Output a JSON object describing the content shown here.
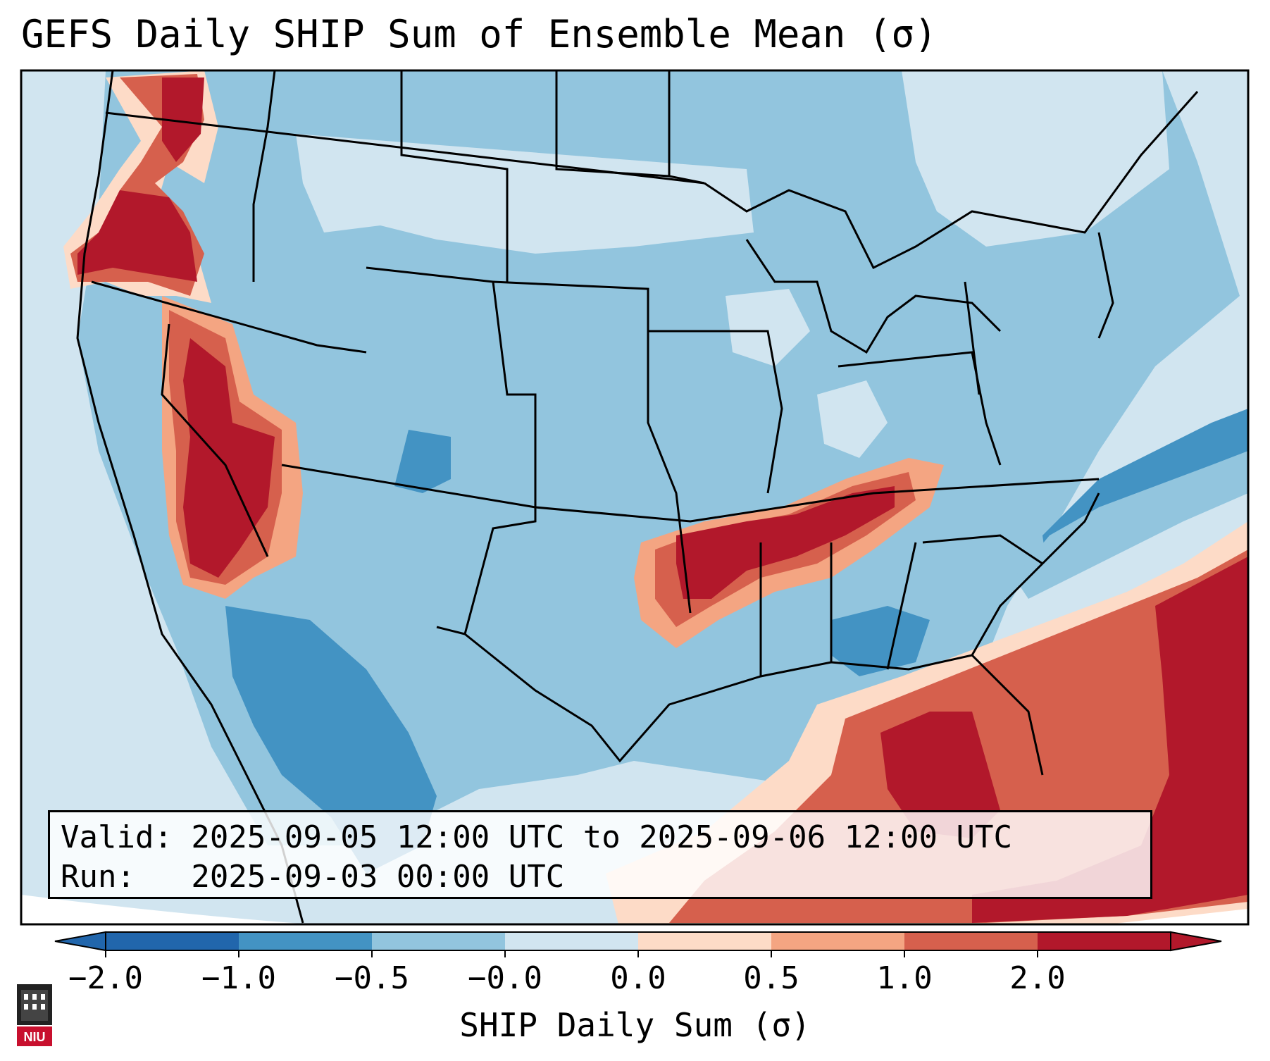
{
  "title": "GEFS Daily SHIP Sum of Ensemble Mean (σ)",
  "info": {
    "valid_line": "Valid: 2025-09-05 12:00 UTC to 2025-09-06 12:00 UTC",
    "run_line": "Run:   2025-09-03 00:00 UTC"
  },
  "colorbar": {
    "label": "SHIP Daily Sum (σ)",
    "ticks": [
      "−2.0",
      "−1.0",
      "−0.5",
      "−0.0",
      "0.0",
      "0.5",
      "1.0",
      "2.0"
    ],
    "colors": [
      "#2166ac",
      "#4393c3",
      "#92c5de",
      "#d1e5f0",
      "#fddbc7",
      "#f4a582",
      "#d6604d",
      "#b2182b"
    ],
    "extend": "both"
  },
  "map": {
    "ocean_background": "#d1e5f0",
    "regions": [
      {
        "label": "high",
        "color": "#b2182b",
        "location": "Pacific Northwest"
      },
      {
        "label": "high",
        "color": "#b2182b",
        "location": "Nevada / California border"
      },
      {
        "label": "high",
        "color": "#b2182b",
        "location": "Arkansas / Tennessee"
      },
      {
        "label": "high",
        "color": "#b2182b",
        "location": "Gulf of Mexico / Florida"
      },
      {
        "label": "high",
        "color": "#b2182b",
        "location": "Western Atlantic / Caribbean"
      },
      {
        "label": "low",
        "color": "#4393c3",
        "location": "Northern Mexico"
      },
      {
        "label": "low",
        "color": "#4393c3",
        "location": "Offshore Carolinas"
      },
      {
        "label": "low",
        "color": "#4393c3",
        "location": "Colorado / New Mexico"
      }
    ]
  },
  "logo": {
    "text": "NIU"
  }
}
